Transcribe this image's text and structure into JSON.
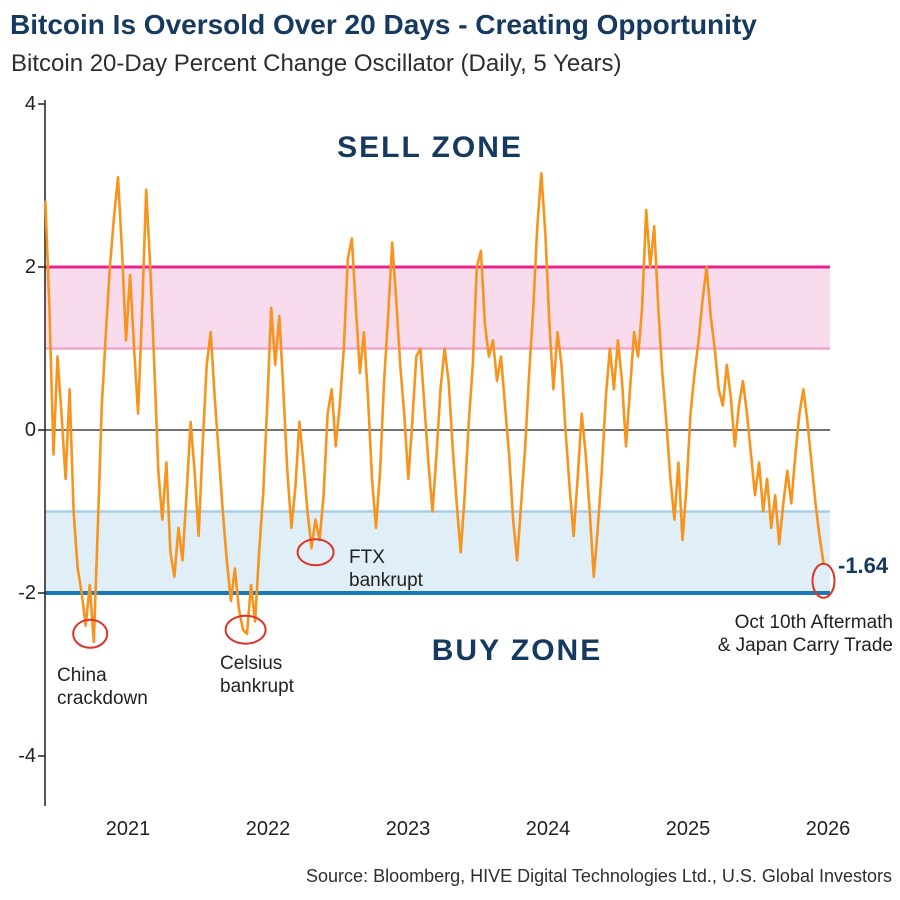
{
  "header": {
    "title": "Bitcoin Is Oversold Over 20 Days - Creating Opportunity",
    "subtitle": "Bitcoin 20-Day Percent Change Oscillator (Daily, 5 Years)"
  },
  "footer": {
    "source": "Source: Bloomberg, HIVE Digital Technologies Ltd., U.S. Global Investors"
  },
  "colors": {
    "title_navy": "#16395F",
    "oscillator_orange": "#F7941E",
    "sell_zone_line": "#E9238D",
    "sell_zone_fill": "#F8DBEC",
    "sell_zone_inner_line": "#EFA8CE",
    "buy_zone_line": "#1879B8",
    "buy_zone_fill": "#DFEEF7",
    "buy_zone_inner_line": "#A6CEE4",
    "event_circle_red": "#DD3327"
  },
  "chart_data": {
    "type": "line",
    "title": "Bitcoin Is Oversold Over 20 Days - Creating Opportunity",
    "subtitle": "Bitcoin 20-Day Percent Change Oscillator (Daily, 5 Years)",
    "ylabel": "",
    "xlabel": "",
    "ylim": [
      -4,
      4
    ],
    "grid": false,
    "y_axis": {
      "ticks": [
        {
          "label": "4",
          "value": 4
        },
        {
          "label": "2",
          "value": 2
        },
        {
          "label": "0",
          "value": 0
        },
        {
          "label": "-2",
          "value": -2
        },
        {
          "label": "-4",
          "value": -4
        }
      ]
    },
    "x_axis": {
      "ticks": [
        {
          "label": "2021",
          "year": 2021
        },
        {
          "label": "2022",
          "year": 2022
        },
        {
          "label": "2023",
          "year": 2023
        },
        {
          "label": "2024",
          "year": 2024
        },
        {
          "label": "2025",
          "year": 2025
        },
        {
          "label": "2026",
          "year": 2026
        }
      ]
    },
    "zones": {
      "sell": {
        "label": "SELL ZONE",
        "upper": 2,
        "lower": 1
      },
      "buy": {
        "label": "BUY ZONE",
        "upper": -1,
        "lower": -2
      }
    },
    "last_value": -1.64,
    "series": [
      {
        "name": "Bitcoin 20-day percent change oscillator",
        "t_start": 2020.41,
        "t_step": 0.0288,
        "values": [
          2.8,
          1.5,
          -0.3,
          0.9,
          0.2,
          -0.6,
          0.5,
          -1.0,
          -1.7,
          -2.0,
          -2.4,
          -1.9,
          -2.6,
          -1.2,
          0.3,
          1.2,
          2.0,
          2.6,
          3.1,
          2.2,
          1.1,
          1.9,
          1.0,
          0.2,
          1.5,
          2.95,
          2.0,
          0.8,
          -0.5,
          -1.1,
          -0.4,
          -1.5,
          -1.8,
          -1.2,
          -1.6,
          -0.8,
          0.1,
          -0.5,
          -1.3,
          -0.2,
          0.8,
          1.2,
          0.4,
          -0.3,
          -1.0,
          -1.6,
          -2.1,
          -1.7,
          -2.2,
          -2.45,
          -2.5,
          -1.9,
          -2.35,
          -1.5,
          -0.8,
          0.3,
          1.5,
          0.8,
          1.4,
          0.5,
          -0.5,
          -1.2,
          -0.7,
          0.1,
          -0.4,
          -1.0,
          -1.45,
          -1.1,
          -1.35,
          -0.8,
          0.2,
          0.5,
          -0.2,
          0.3,
          1.0,
          2.1,
          2.35,
          1.5,
          0.7,
          1.2,
          0.4,
          -0.6,
          -1.2,
          -0.5,
          0.6,
          1.4,
          2.3,
          1.6,
          0.8,
          0.2,
          -0.6,
          0.1,
          0.9,
          1.0,
          0.3,
          -0.4,
          -1.0,
          -0.3,
          0.5,
          1.0,
          0.6,
          -0.2,
          -0.9,
          -1.5,
          -0.8,
          0.1,
          0.8,
          2.0,
          2.2,
          1.3,
          0.9,
          1.1,
          0.6,
          0.9,
          0.3,
          -0.3,
          -1.1,
          -1.6,
          -0.9,
          -0.2,
          0.7,
          1.5,
          2.5,
          3.15,
          2.4,
          1.3,
          0.5,
          1.2,
          0.8,
          0.0,
          -0.7,
          -1.3,
          -0.6,
          0.2,
          -0.3,
          -1.0,
          -1.8,
          -1.2,
          -0.5,
          0.4,
          1.0,
          0.5,
          1.1,
          0.6,
          -0.2,
          0.5,
          1.2,
          0.9,
          1.5,
          2.7,
          2.0,
          2.5,
          1.5,
          0.7,
          0.1,
          -0.6,
          -1.1,
          -0.4,
          -1.35,
          -0.7,
          0.2,
          0.7,
          1.1,
          1.6,
          2.0,
          1.4,
          1.0,
          0.5,
          0.3,
          0.8,
          0.4,
          -0.2,
          0.3,
          0.6,
          0.2,
          -0.3,
          -0.8,
          -0.4,
          -1.0,
          -0.6,
          -1.2,
          -0.8,
          -1.4,
          -0.9,
          -0.5,
          -0.9,
          -0.3,
          0.2,
          0.5,
          0.1,
          -0.4,
          -0.9,
          -1.3,
          -1.64
        ]
      }
    ]
  },
  "annotations": {
    "events": [
      {
        "id": "china-crackdown",
        "label_line1": "China",
        "label_line2": "crackdown",
        "t": 2020.73,
        "v": -2.5
      },
      {
        "id": "celsius-bankrupt",
        "label_line1": "Celsius",
        "label_line2": "bankrupt",
        "t": 2021.84,
        "v": -2.45
      },
      {
        "id": "ftx-bankrupt",
        "label_line1": "FTX",
        "label_line2": "bankrupt",
        "t": 2022.34,
        "v": -1.5
      },
      {
        "id": "oct10-aftermath",
        "label_line1": "Oct 10th Aftermath",
        "label_line2": "& Japan Carry Trade",
        "t": 2025.968,
        "v": -1.85,
        "value_label": "-1.64"
      }
    ]
  }
}
